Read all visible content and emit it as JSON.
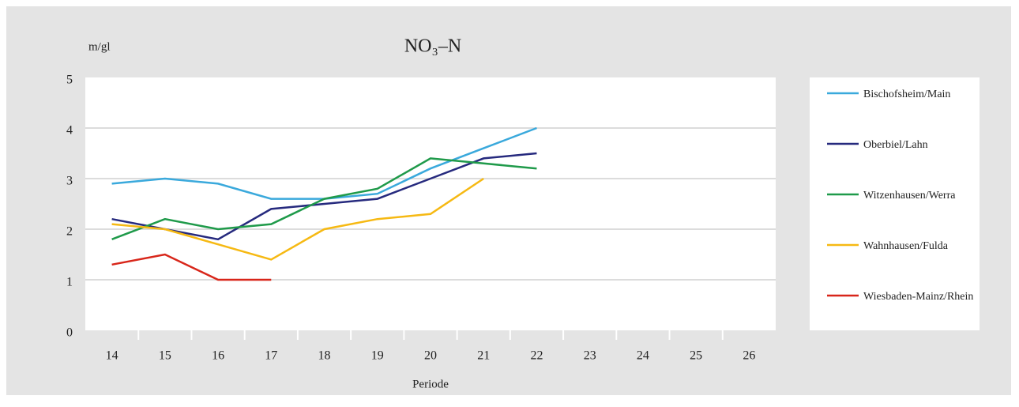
{
  "chart_data": {
    "type": "line",
    "title": "NO₃–N",
    "y_label": "m/gl",
    "x_label": "Periode",
    "categories": [
      "14",
      "15",
      "16",
      "17",
      "18",
      "19",
      "20",
      "21",
      "22",
      "23",
      "24",
      "25",
      "26"
    ],
    "series": [
      {
        "name": "Bischofsheim/Main",
        "color": "#3aa9dc",
        "values": [
          2.9,
          3.0,
          2.9,
          2.6,
          2.6,
          2.7,
          3.2,
          3.6,
          4.0,
          null,
          null,
          null,
          null
        ]
      },
      {
        "name": "Oberbiel/Lahn",
        "color": "#262a7e",
        "values": [
          2.2,
          2.0,
          1.8,
          2.4,
          2.5,
          2.6,
          3.0,
          3.4,
          3.5,
          null,
          null,
          null,
          null
        ]
      },
      {
        "name": "Witzenhausen/Werra",
        "color": "#1f9a4a",
        "values": [
          1.8,
          2.2,
          2.0,
          2.1,
          2.6,
          2.8,
          3.4,
          3.3,
          3.2,
          null,
          null,
          null,
          null
        ]
      },
      {
        "name": "Wahnhausen/Fulda",
        "color": "#f6b913",
        "values": [
          2.1,
          2.0,
          1.7,
          1.4,
          2.0,
          2.2,
          2.3,
          3.0,
          null,
          null,
          null,
          null,
          null
        ]
      },
      {
        "name": "Wiesbaden-Mainz/Rhein",
        "color": "#d8261a",
        "values": [
          1.3,
          1.5,
          1.0,
          1.0,
          null,
          null,
          null,
          null,
          null,
          null,
          null,
          null,
          null
        ]
      }
    ],
    "ylim": [
      0,
      5
    ],
    "yticks": [
      0,
      1,
      2,
      3,
      4,
      5
    ],
    "grid": true,
    "legend": "right"
  }
}
